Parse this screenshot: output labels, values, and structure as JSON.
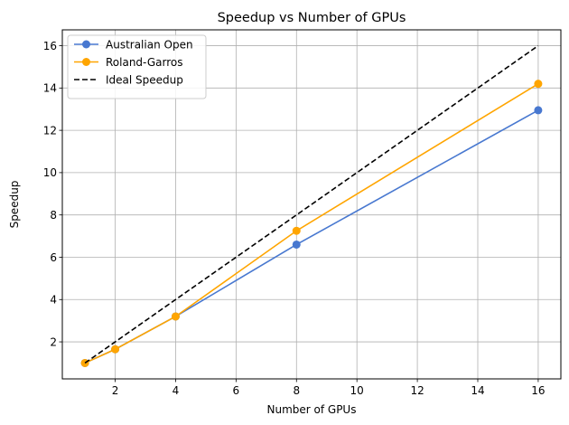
{
  "chart_data": {
    "type": "line",
    "title": "Speedup vs Number of GPUs",
    "xlabel": "Number of GPUs",
    "ylabel": "Speedup",
    "x": [
      1,
      2,
      4,
      8,
      16
    ],
    "xlim": [
      0.25,
      16.75
    ],
    "ylim": [
      0.25,
      16.75
    ],
    "xticks": [
      2,
      4,
      6,
      8,
      10,
      12,
      14,
      16
    ],
    "yticks": [
      2,
      4,
      6,
      8,
      10,
      12,
      14,
      16
    ],
    "grid": true,
    "legend_position": "top-left",
    "series": [
      {
        "name": "Australian Open",
        "values": [
          1.0,
          1.65,
          3.2,
          6.6,
          12.95
        ],
        "color": "#4878d0",
        "style": "solid-marker"
      },
      {
        "name": "Roland-Garros",
        "values": [
          1.0,
          1.65,
          3.2,
          7.25,
          14.2
        ],
        "color": "#ffa500",
        "style": "solid-marker"
      },
      {
        "name": "Ideal Speedup",
        "values": [
          1,
          2,
          4,
          8,
          16
        ],
        "color": "#000000",
        "style": "dashed"
      }
    ]
  }
}
